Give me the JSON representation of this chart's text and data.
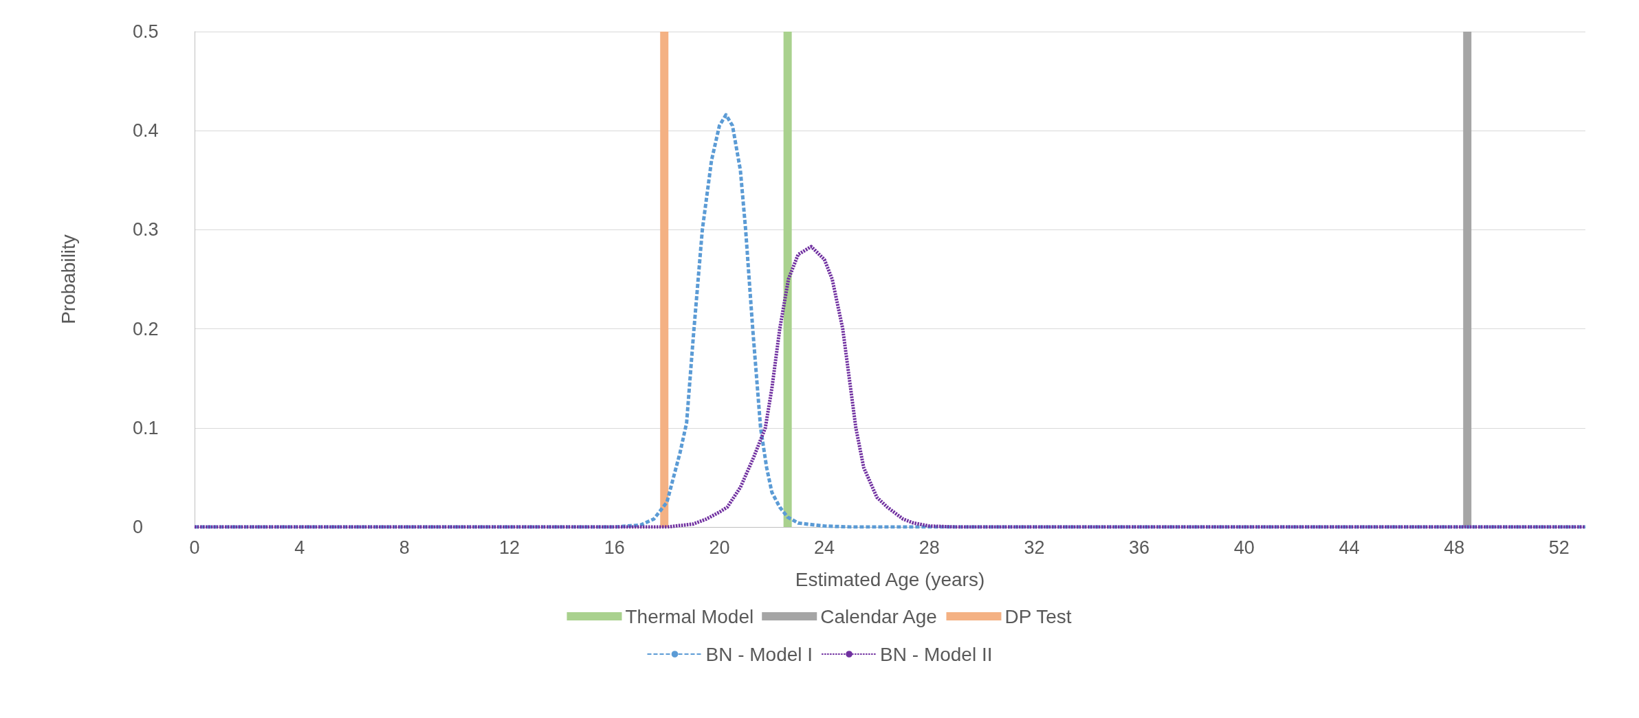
{
  "chart_data": {
    "type": "line",
    "xlabel": "Estimated Age (years)",
    "ylabel": "Probability",
    "xlim": [
      0,
      53
    ],
    "ylim": [
      0,
      0.5
    ],
    "xticks": [
      0,
      4,
      8,
      12,
      16,
      20,
      24,
      28,
      32,
      36,
      40,
      44,
      48,
      52
    ],
    "yticks": [
      0,
      0.1,
      0.2,
      0.3,
      0.4,
      0.5
    ],
    "grid": "y",
    "legend": "bottom",
    "marker": "none",
    "series": [
      {
        "name": "Thermal Model",
        "color": "#a9d18e",
        "line_style": "solid",
        "x": [
          22.6,
          22.6
        ],
        "values": [
          0,
          0.5
        ]
      },
      {
        "name": "Calendar Age",
        "color": "#a5a5a5",
        "line_style": "solid",
        "x": [
          48.5,
          48.5
        ],
        "values": [
          0,
          0.5
        ]
      },
      {
        "name": "DP Test",
        "color": "#f4b183",
        "line_style": "solid",
        "x": [
          17.9,
          17.9
        ],
        "values": [
          0,
          0.5
        ]
      },
      {
        "name": "BN - Model I",
        "color": "#5b9bd5",
        "line_style": "dashed",
        "x": [
          0,
          16,
          17,
          17.5,
          18,
          18.5,
          18.75,
          19,
          19.35,
          19.7,
          20,
          20.25,
          20.5,
          20.8,
          21,
          21.27,
          21.57,
          21.8,
          22,
          22.3,
          22.6,
          23,
          24,
          25,
          53
        ],
        "values": [
          0,
          0,
          0.002,
          0.008,
          0.025,
          0.075,
          0.105,
          0.19,
          0.3,
          0.37,
          0.405,
          0.416,
          0.405,
          0.36,
          0.3,
          0.2,
          0.1,
          0.06,
          0.035,
          0.02,
          0.01,
          0.004,
          0.001,
          0,
          0
        ]
      },
      {
        "name": "BN - Model II",
        "color": "#7030a0",
        "line_style": "dotted",
        "x": [
          0,
          18,
          19,
          19.5,
          20,
          20.3,
          20.8,
          21.3,
          21.75,
          22,
          22.3,
          22.63,
          23,
          23.5,
          24,
          24.3,
          24.7,
          25.2,
          25.5,
          26,
          26.4,
          27,
          27.4,
          28,
          29,
          53
        ],
        "values": [
          0,
          0,
          0.003,
          0.008,
          0.015,
          0.02,
          0.04,
          0.07,
          0.1,
          0.14,
          0.2,
          0.25,
          0.275,
          0.283,
          0.27,
          0.25,
          0.2,
          0.1,
          0.06,
          0.03,
          0.02,
          0.008,
          0.004,
          0.001,
          0,
          0
        ]
      }
    ]
  }
}
